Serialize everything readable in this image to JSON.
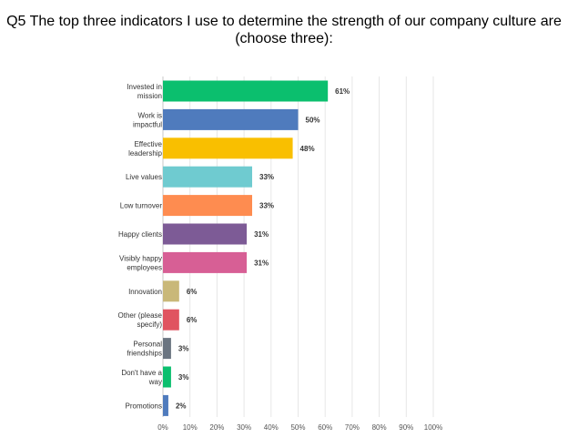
{
  "title": "Q5 The top three indicators I use to determine the strength of our company culture are (choose three):",
  "chart_data": {
    "type": "bar",
    "orientation": "horizontal",
    "title": "Q5 The top three indicators I use to determine the strength of our company culture are (choose three):",
    "categories": [
      [
        "Invested in",
        "mission"
      ],
      [
        "Work is",
        "impactful"
      ],
      [
        "Effective",
        "leadership"
      ],
      [
        "Live values"
      ],
      [
        "Low turnover"
      ],
      [
        "Happy clients"
      ],
      [
        "Visibly happy",
        "employees"
      ],
      [
        "Innovation"
      ],
      [
        "Other (please",
        "specify)"
      ],
      [
        "Personal",
        "friendships"
      ],
      [
        "Don't have a",
        "way"
      ],
      [
        "Promotions"
      ]
    ],
    "values": [
      61,
      50,
      48,
      33,
      33,
      31,
      31,
      6,
      6,
      3,
      3,
      2
    ],
    "value_labels": [
      "61%",
      "50%",
      "48%",
      "33%",
      "33%",
      "31%",
      "31%",
      "6%",
      "6%",
      "3%",
      "3%",
      "2%"
    ],
    "colors": [
      "#0bbf6e",
      "#4f7bbd",
      "#f9bf00",
      "#6fcbd0",
      "#fe8c50",
      "#7d5b96",
      "#d75f95",
      "#c9b879",
      "#e05460",
      "#6b7581",
      "#0bbf6e",
      "#4f7bbd"
    ],
    "xlim": [
      0,
      100
    ],
    "x_ticks": [
      "0%",
      "10%",
      "20%",
      "30%",
      "40%",
      "50%",
      "60%",
      "70%",
      "80%",
      "90%",
      "100%"
    ],
    "x_tick_values": [
      0,
      10,
      20,
      30,
      40,
      50,
      60,
      70,
      80,
      90,
      100
    ],
    "grid": true,
    "xlabel": "",
    "ylabel": ""
  }
}
